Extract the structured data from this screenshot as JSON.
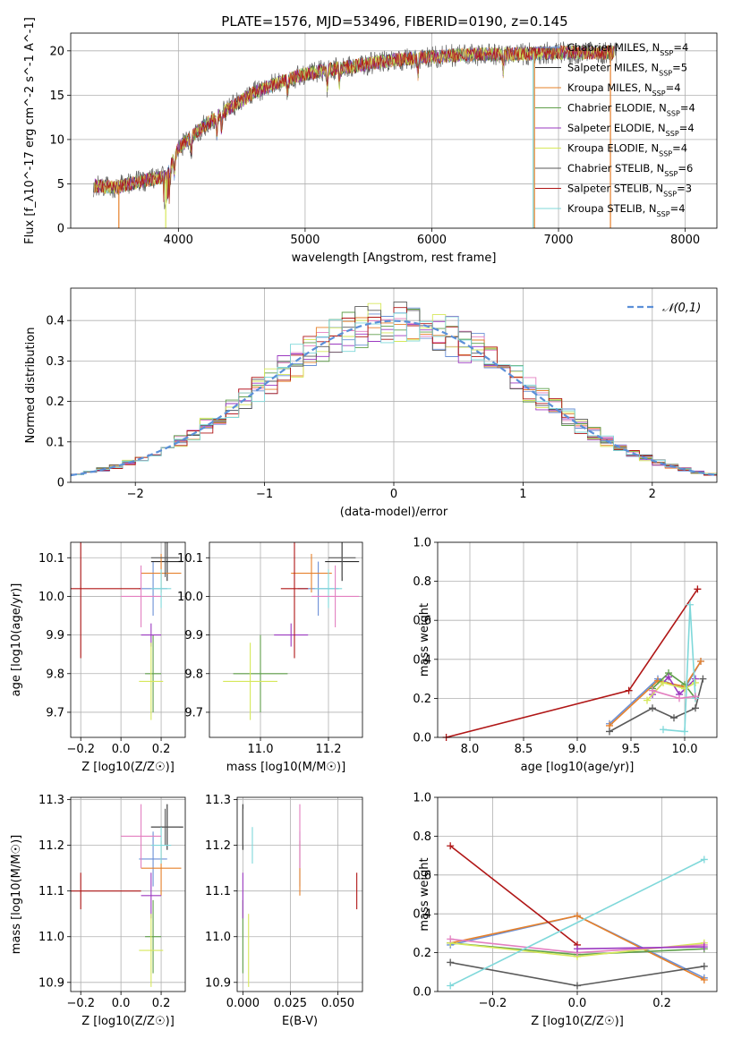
{
  "figure_title": "PLATE=1576, MJD=53496, FIBERID=0190, z=0.145",
  "colors": {
    "Chabrier MILES": "#6a8fd6",
    "Salpeter MILES": "#2b2b2b",
    "Kroupa MILES": "#e6802a",
    "Chabrier ELODIE": "#5f9f4a",
    "Salpeter ELODIE": "#9b39c0",
    "Kroupa ELODIE": "#d6e85a",
    "Chabrier STELIB": "#5a5a5a",
    "Salpeter STELIB": "#b01616",
    "Kroupa STELIB": "#7fd8da",
    "normal": "#5b8fd8",
    "pink": "#e37fc0"
  },
  "chart_data": [
    {
      "id": "spectrum",
      "type": "line",
      "xlabel": "wavelength [Angstrom, rest frame]",
      "ylabel": "Flux [f_λ10^-17 erg cm^-2 s^-1 A^-1]",
      "xlim": [
        3150,
        8250
      ],
      "ylim": [
        0,
        22
      ],
      "xticks": [
        4000,
        5000,
        6000,
        7000,
        8000
      ],
      "yticks": [
        0,
        5,
        10,
        15,
        20
      ],
      "legend_location": "upper right",
      "legend": [
        {
          "label": "Chabrier MILES, N_SSP=4",
          "key": "Chabrier MILES"
        },
        {
          "label": "Salpeter MILES, N_SSP=5",
          "key": "Salpeter MILES"
        },
        {
          "label": "Kroupa MILES, N_SSP=4",
          "key": "Kroupa MILES"
        },
        {
          "label": "Chabrier ELODIE, N_SSP=4",
          "key": "Chabrier ELODIE"
        },
        {
          "label": "Salpeter ELODIE, N_SSP=4",
          "key": "Salpeter ELODIE"
        },
        {
          "label": "Kroupa ELODIE, N_SSP=4",
          "key": "Kroupa ELODIE"
        },
        {
          "label": "Chabrier STELIB, N_SSP=6",
          "key": "Chabrier STELIB"
        },
        {
          "label": "Salpeter STELIB, N_SSP=3",
          "key": "Salpeter STELIB"
        },
        {
          "label": "Kroupa STELIB, N_SSP=4",
          "key": "Kroupa STELIB"
        }
      ],
      "continuum": [
        [
          3330,
          4.8
        ],
        [
          3500,
          4.6
        ],
        [
          3700,
          5.3
        ],
        [
          3900,
          5.8
        ],
        [
          4000,
          9.0
        ],
        [
          4200,
          11.5
        ],
        [
          4400,
          13.5
        ],
        [
          4600,
          15.3
        ],
        [
          4800,
          16.5
        ],
        [
          5000,
          17.4
        ],
        [
          5200,
          17.9
        ],
        [
          5400,
          18.3
        ],
        [
          5600,
          18.8
        ],
        [
          5800,
          19.1
        ],
        [
          6000,
          19.3
        ],
        [
          6200,
          19.5
        ],
        [
          6400,
          19.6
        ],
        [
          6600,
          19.6
        ],
        [
          6800,
          19.7
        ],
        [
          7000,
          19.8
        ],
        [
          7200,
          19.8
        ],
        [
          7400,
          19.8
        ]
      ],
      "dropouts": [
        {
          "key": "Kroupa MILES",
          "x": 3530
        },
        {
          "key": "Kroupa ELODIE",
          "x": 3900
        },
        {
          "key": "Kroupa STELIB",
          "x": 6800
        },
        {
          "key": "Kroupa MILES",
          "x": 6810
        },
        {
          "key": "Kroupa MILES",
          "x": 7410
        }
      ]
    },
    {
      "id": "residuals",
      "type": "area",
      "xlabel": "(data-model)/error",
      "ylabel": "Normed distribution",
      "xlim": [
        -2.5,
        2.5
      ],
      "ylim": [
        0,
        0.48
      ],
      "xticks": [
        -2,
        -1,
        0,
        1,
        2
      ],
      "yticks": [
        0.0,
        0.1,
        0.2,
        0.3,
        0.4
      ],
      "bin_width": 0.1,
      "reference_curve": {
        "label": "𝒩(0,1)",
        "mean": 0,
        "sigma": 1,
        "key": "normal",
        "style": "dashed"
      },
      "legend_location": "upper right"
    },
    {
      "id": "age_vs_Z",
      "type": "scatter",
      "xlabel": "Z [log10(Z/Z☉)]",
      "ylabel": "age  [log10(age/yr)]",
      "xlim": [
        -0.25,
        0.32
      ],
      "ylim": [
        9.635,
        10.14
      ],
      "xticks": [
        -0.2,
        0.0,
        0.2
      ],
      "xticklabels": [
        "−0.2",
        "0.0",
        "0.2"
      ],
      "yticks": [
        9.7,
        9.8,
        9.9,
        10.0,
        10.1
      ],
      "yticklabels": [
        "9.7",
        "9.8",
        "9.9",
        "10.0",
        "10.1"
      ]
    },
    {
      "id": "age_vs_mass",
      "type": "scatter",
      "xlabel": "mass [log10(M/M☉)]",
      "xlim": [
        10.85,
        11.3
      ],
      "ylim": [
        9.635,
        10.14
      ],
      "xticks": [
        11.0,
        11.2
      ],
      "xticklabels": [
        "11.0",
        "11.2"
      ],
      "yticks": [
        9.7,
        9.8,
        9.9,
        10.0,
        10.1
      ],
      "yticklabels": [
        "9.7",
        "9.8",
        "9.9",
        "10.0",
        "10.1"
      ]
    },
    {
      "id": "weight_vs_age",
      "type": "line",
      "xlabel": "age  [log10(age/yr)]",
      "ylabel": "mass weight",
      "xlim": [
        7.7,
        10.3
      ],
      "ylim": [
        0,
        1
      ],
      "xticks": [
        8.0,
        8.5,
        9.0,
        9.5,
        10.0
      ],
      "xticklabels": [
        "8.0",
        "8.5",
        "9.0",
        "9.5",
        "10.0"
      ],
      "yticks": [
        0.0,
        0.2,
        0.4,
        0.6,
        0.8,
        1.0
      ],
      "yticklabels": [
        "0.0",
        "0.2",
        "0.4",
        "0.6",
        "0.8",
        "1.0"
      ],
      "series": [
        {
          "key": "Chabrier MILES",
          "x": [
            9.3,
            9.75,
            10.0,
            10.15
          ],
          "y": [
            0.07,
            0.3,
            0.25,
            0.39
          ]
        },
        {
          "key": "Kroupa MILES",
          "x": [
            9.3,
            9.75,
            10.0,
            10.15
          ],
          "y": [
            0.06,
            0.29,
            0.26,
            0.39
          ]
        },
        {
          "key": "Chabrier ELODIE",
          "x": [
            9.7,
            9.85,
            10.0,
            10.1
          ],
          "y": [
            0.25,
            0.33,
            0.27,
            0.2
          ]
        },
        {
          "key": "Salpeter ELODIE",
          "x": [
            9.7,
            9.85,
            9.95,
            10.1
          ],
          "y": [
            0.22,
            0.31,
            0.22,
            0.3
          ]
        },
        {
          "key": "Kroupa ELODIE",
          "x": [
            9.65,
            9.8,
            10.0,
            10.1
          ],
          "y": [
            0.19,
            0.28,
            0.25,
            0.28
          ]
        },
        {
          "key": "Chabrier STELIB",
          "x": [
            9.3,
            9.7,
            9.9,
            10.1,
            10.17
          ],
          "y": [
            0.03,
            0.15,
            0.1,
            0.15,
            0.3
          ]
        },
        {
          "key": "Salpeter STELIB",
          "x": [
            7.78,
            9.48,
            10.12
          ],
          "y": [
            0.0,
            0.24,
            0.76
          ]
        },
        {
          "key": "Kroupa STELIB",
          "x": [
            9.8,
            10.0,
            10.05,
            10.1
          ],
          "y": [
            0.04,
            0.03,
            0.68,
            0.2
          ]
        },
        {
          "key": "pink",
          "x": [
            9.7,
            9.95,
            10.1
          ],
          "y": [
            0.24,
            0.2,
            0.21
          ]
        }
      ]
    },
    {
      "id": "mass_vs_Z",
      "type": "scatter",
      "xlabel": "Z [log10(Z/Z☉)]",
      "ylabel": "mass [log10(M/M☉)]",
      "xlim": [
        -0.25,
        0.32
      ],
      "ylim": [
        10.88,
        11.305
      ],
      "xticks": [
        -0.2,
        0.0,
        0.2
      ],
      "xticklabels": [
        "−0.2",
        "0.0",
        "0.2"
      ],
      "yticks": [
        10.9,
        11.0,
        11.1,
        11.2,
        11.3
      ],
      "yticklabels": [
        "10.9",
        "11.0",
        "11.1",
        "11.2",
        "11.3"
      ]
    },
    {
      "id": "mass_vs_ebv",
      "type": "scatter",
      "xlabel": "E(B-V)",
      "xlim": [
        -0.003,
        0.063
      ],
      "ylim": [
        10.88,
        11.305
      ],
      "xticks": [
        0.0,
        0.025,
        0.05
      ],
      "xticklabels": [
        "0.000",
        "0.025",
        "0.050"
      ],
      "yticks": [
        10.9,
        11.0,
        11.1,
        11.2,
        11.3
      ],
      "yticklabels": [
        "10.9",
        "11.0",
        "11.1",
        "11.2",
        "11.3"
      ]
    },
    {
      "id": "weight_vs_Z",
      "type": "line",
      "xlabel": "Z [log10(Z/Z☉)]",
      "ylabel": "mass weight",
      "xlim": [
        -0.33,
        0.33
      ],
      "ylim": [
        0,
        1
      ],
      "xticks": [
        -0.2,
        0.0,
        0.2
      ],
      "xticklabels": [
        "−0.2",
        "0.0",
        "0.2"
      ],
      "yticks": [
        0.0,
        0.2,
        0.4,
        0.6,
        0.8,
        1.0
      ],
      "yticklabels": [
        "0.0",
        "0.2",
        "0.4",
        "0.6",
        "0.8",
        "1.0"
      ],
      "series": [
        {
          "key": "Chabrier MILES",
          "x": [
            -0.3,
            0.0,
            0.3
          ],
          "y": [
            0.24,
            0.39,
            0.07
          ]
        },
        {
          "key": "Kroupa MILES",
          "x": [
            -0.3,
            0.0,
            0.3
          ],
          "y": [
            0.25,
            0.39,
            0.06
          ]
        },
        {
          "key": "Chabrier ELODIE",
          "x": [
            -0.3,
            0.0,
            0.3
          ],
          "y": [
            0.25,
            0.19,
            0.22
          ]
        },
        {
          "key": "Kroupa ELODIE",
          "x": [
            -0.3,
            0.0,
            0.3
          ],
          "y": [
            0.25,
            0.18,
            0.25
          ]
        },
        {
          "key": "pink",
          "x": [
            -0.3,
            0.0,
            0.3
          ],
          "y": [
            0.27,
            0.2,
            0.24
          ]
        },
        {
          "key": "Chabrier STELIB",
          "x": [
            -0.3,
            0.0,
            0.3
          ],
          "y": [
            0.15,
            0.03,
            0.13
          ]
        },
        {
          "key": "Salpeter STELIB",
          "x": [
            -0.3,
            0.0
          ],
          "y": [
            0.75,
            0.24
          ]
        },
        {
          "key": "Kroupa STELIB",
          "x": [
            -0.3,
            0.3
          ],
          "y": [
            0.03,
            0.68
          ]
        },
        {
          "key": "Salpeter ELODIE",
          "x": [
            0.0,
            0.3
          ],
          "y": [
            0.22,
            0.23
          ]
        }
      ]
    }
  ],
  "fit_points": [
    {
      "key": "Chabrier MILES",
      "Z": 0.16,
      "Z_err": 0.07,
      "age": 10.02,
      "age_err": 0.07,
      "mass": 11.17,
      "mass_err": 0.06,
      "ebv": 0.03,
      "ebv_err": 0.0
    },
    {
      "key": "Salpeter MILES",
      "Z": 0.23,
      "Z_err": 0.08,
      "age": 10.09,
      "age_err": 0.05,
      "mass": 11.24,
      "mass_err": 0.05,
      "ebv": 0.0,
      "ebv_err": 0.0
    },
    {
      "key": "Kroupa MILES",
      "Z": 0.2,
      "Z_err": 0.1,
      "age": 10.06,
      "age_err": 0.05,
      "mass": 11.15,
      "mass_err": 0.06,
      "ebv": 0.03,
      "ebv_err": 0.0
    },
    {
      "key": "Chabrier ELODIE",
      "Z": 0.16,
      "Z_err": 0.04,
      "age": 9.8,
      "age_err": 0.1,
      "mass": 11.0,
      "mass_err": 0.08,
      "ebv": 0.0,
      "ebv_err": 0.0
    },
    {
      "key": "Salpeter ELODIE",
      "Z": 0.15,
      "Z_err": 0.05,
      "age": 9.9,
      "age_err": 0.03,
      "mass": 11.09,
      "mass_err": 0.05,
      "ebv": 0.0,
      "ebv_err": 0.0
    },
    {
      "key": "Kroupa ELODIE",
      "Z": 0.15,
      "Z_err": 0.06,
      "age": 9.78,
      "age_err": 0.1,
      "mass": 10.97,
      "mass_err": 0.08,
      "ebv": 0.003,
      "ebv_err": 0.0
    },
    {
      "key": "Chabrier STELIB",
      "Z": 0.22,
      "Z_err": 0.07,
      "age": 10.1,
      "age_err": 0.05,
      "mass": 11.24,
      "mass_err": 0.04,
      "ebv": 0.0,
      "ebv_err": 0.0
    },
    {
      "key": "Salpeter STELIB",
      "Z": -0.2,
      "Z_err": 0.3,
      "age": 10.02,
      "age_err": 0.18,
      "mass": 11.1,
      "mass_err": 0.04,
      "ebv": 0.06,
      "ebv_err": 0.0
    },
    {
      "key": "Kroupa STELIB",
      "Z": 0.2,
      "Z_err": 0.05,
      "age": 10.02,
      "age_err": 0.05,
      "mass": 11.2,
      "mass_err": 0.04,
      "ebv": 0.005,
      "ebv_err": 0.0
    },
    {
      "key": "pink",
      "Z": 0.1,
      "Z_err": 0.1,
      "age": 10.0,
      "age_err": 0.08,
      "mass": 11.22,
      "mass_err": 0.07,
      "ebv": 0.03,
      "ebv_err": 0.0
    }
  ]
}
